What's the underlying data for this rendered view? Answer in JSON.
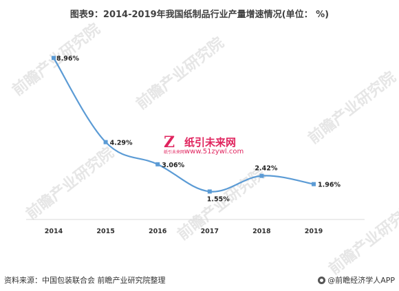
{
  "title": "图表9：2014-2019年我国纸制品行业产量增速情况(单位： %)",
  "source": "资料来源：中国包装联合会 前瞻产业研究院整理",
  "brand_credit": "@前瞻经济学人APP",
  "watermark_text": "前瞻产业研究院",
  "overlay_logo": {
    "name": "纸引未来网",
    "url": "www.51zywl.com",
    "sub": "纸引未来网"
  },
  "colors": {
    "line": "#5b9bd5",
    "axis": "#d9d9d9",
    "text": "#404040",
    "logo": "#e0245e"
  },
  "chart_data": {
    "type": "line",
    "categories": [
      "2014",
      "2015",
      "2016",
      "2017",
      "2018",
      "2019"
    ],
    "values": [
      8.96,
      4.29,
      3.06,
      1.55,
      2.42,
      1.96
    ],
    "data_labels": [
      "8.96%",
      "4.29%",
      "3.06%",
      "1.55%",
      "2.42%",
      "1.96%"
    ],
    "title": "图表9：2014-2019年我国纸制品行业产量增速情况(单位： %)",
    "xlabel": "",
    "ylabel": "",
    "ylim": [
      0,
      10
    ],
    "smooth": true,
    "grid": false,
    "legend": "none"
  }
}
